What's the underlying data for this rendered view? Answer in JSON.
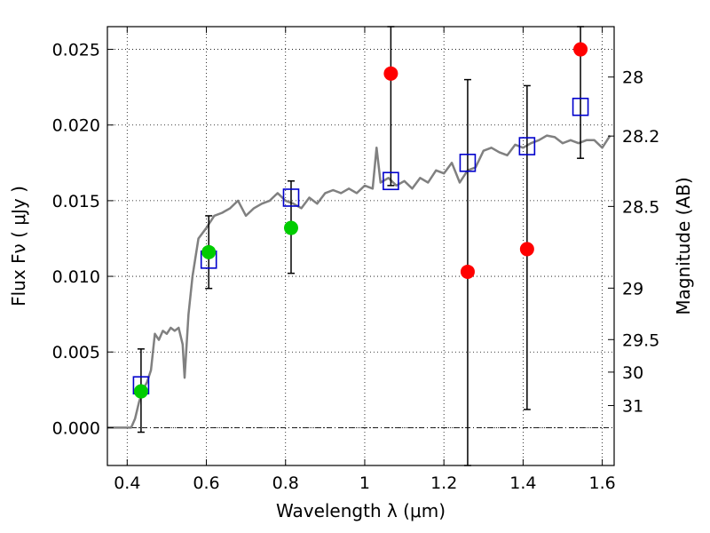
{
  "chart_data": {
    "type": "scatter",
    "title": "",
    "xlabel": "Wavelength  λ (μm)",
    "ylabel": "Flux  Fν  ( μJy )",
    "y2label": "Magnitude (AB)",
    "xlim": [
      0.35,
      1.63
    ],
    "ylim": [
      -0.0025,
      0.0265
    ],
    "grid": true,
    "x_ticks": [
      0.4,
      0.6,
      0.8,
      1.0,
      1.2,
      1.4,
      1.6
    ],
    "x_tick_labels": [
      "0.4",
      "0.6",
      "0.8",
      "1",
      "1.2",
      "1.4",
      "1.6"
    ],
    "y_ticks": [
      0.0,
      0.005,
      0.01,
      0.015,
      0.02,
      0.025
    ],
    "y_tick_labels": [
      "0.000",
      "0.005",
      "0.010",
      "0.015",
      "0.020",
      "0.025"
    ],
    "y2_ticks": [
      {
        "label": "28",
        "flux": 0.02317
      },
      {
        "label": "28.2",
        "flux": 0.01927
      },
      {
        "label": "28.5",
        "flux": 0.01462
      },
      {
        "label": "29",
        "flux": 0.00922
      },
      {
        "label": "29.5",
        "flux": 0.00582
      },
      {
        "label": "30",
        "flux": 0.00367
      },
      {
        "label": "31",
        "flux": 0.00146
      }
    ],
    "colors": {
      "model": "#808080",
      "green_points": "#00cc00",
      "red_points": "#ff0000",
      "squares": "#0000cc",
      "errorbars": "#000000",
      "zero_line": "#000000"
    },
    "series": [
      {
        "kind": "line",
        "points": [
          [
            0.35,
            0.0
          ],
          [
            0.41,
            0.0
          ],
          [
            0.42,
            0.0006
          ],
          [
            0.43,
            0.0017
          ],
          [
            0.44,
            0.0025
          ],
          [
            0.45,
            0.003
          ],
          [
            0.46,
            0.0038
          ],
          [
            0.47,
            0.0062
          ],
          [
            0.48,
            0.0058
          ],
          [
            0.49,
            0.0064
          ],
          [
            0.5,
            0.0062
          ],
          [
            0.51,
            0.0066
          ],
          [
            0.52,
            0.0064
          ],
          [
            0.53,
            0.0066
          ],
          [
            0.54,
            0.0055
          ],
          [
            0.545,
            0.0033
          ],
          [
            0.555,
            0.0075
          ],
          [
            0.565,
            0.01
          ],
          [
            0.58,
            0.0125
          ],
          [
            0.6,
            0.0132
          ],
          [
            0.62,
            0.014
          ],
          [
            0.64,
            0.0142
          ],
          [
            0.66,
            0.0145
          ],
          [
            0.68,
            0.015
          ],
          [
            0.7,
            0.014
          ],
          [
            0.72,
            0.0145
          ],
          [
            0.74,
            0.0148
          ],
          [
            0.76,
            0.015
          ],
          [
            0.78,
            0.0155
          ],
          [
            0.8,
            0.015
          ],
          [
            0.82,
            0.0148
          ],
          [
            0.84,
            0.0145
          ],
          [
            0.86,
            0.0152
          ],
          [
            0.88,
            0.0148
          ],
          [
            0.9,
            0.0155
          ],
          [
            0.92,
            0.0157
          ],
          [
            0.94,
            0.0155
          ],
          [
            0.96,
            0.0158
          ],
          [
            0.98,
            0.0155
          ],
          [
            1.0,
            0.016
          ],
          [
            1.02,
            0.0158
          ],
          [
            1.03,
            0.0185
          ],
          [
            1.04,
            0.0162
          ],
          [
            1.06,
            0.0165
          ],
          [
            1.08,
            0.016
          ],
          [
            1.1,
            0.0163
          ],
          [
            1.12,
            0.0158
          ],
          [
            1.14,
            0.0165
          ],
          [
            1.16,
            0.0162
          ],
          [
            1.18,
            0.017
          ],
          [
            1.2,
            0.0168
          ],
          [
            1.22,
            0.0175
          ],
          [
            1.24,
            0.0162
          ],
          [
            1.26,
            0.017
          ],
          [
            1.28,
            0.0172
          ],
          [
            1.3,
            0.0183
          ],
          [
            1.32,
            0.0185
          ],
          [
            1.34,
            0.0182
          ],
          [
            1.36,
            0.018
          ],
          [
            1.38,
            0.0187
          ],
          [
            1.4,
            0.0185
          ],
          [
            1.42,
            0.0188
          ],
          [
            1.44,
            0.019
          ],
          [
            1.46,
            0.0193
          ],
          [
            1.48,
            0.0192
          ],
          [
            1.5,
            0.0188
          ],
          [
            1.52,
            0.019
          ],
          [
            1.54,
            0.0188
          ],
          [
            1.56,
            0.019
          ],
          [
            1.58,
            0.019
          ],
          [
            1.6,
            0.0185
          ],
          [
            1.62,
            0.0193
          ]
        ]
      },
      {
        "kind": "points-green",
        "points": [
          [
            0.435,
            0.0024
          ],
          [
            0.606,
            0.0116
          ],
          [
            0.814,
            0.0132
          ]
        ]
      },
      {
        "kind": "points-red",
        "points": [
          [
            1.066,
            0.0234
          ],
          [
            1.26,
            0.0103
          ],
          [
            1.41,
            0.0118
          ],
          [
            1.545,
            0.025
          ]
        ]
      },
      {
        "kind": "squares",
        "points": [
          [
            0.435,
            0.0028
          ],
          [
            0.606,
            0.0111
          ],
          [
            0.814,
            0.0152
          ],
          [
            1.066,
            0.0163
          ],
          [
            1.26,
            0.0175
          ],
          [
            1.41,
            0.0186
          ],
          [
            1.545,
            0.0212
          ]
        ]
      },
      {
        "kind": "errorbars",
        "bars": [
          {
            "x": 0.435,
            "low": -0.0003,
            "high": 0.0052
          },
          {
            "x": 0.606,
            "low": 0.0092,
            "high": 0.014
          },
          {
            "x": 0.814,
            "low": 0.0102,
            "high": 0.0163
          },
          {
            "x": 1.066,
            "low": 0.016,
            "high": 0.0265
          },
          {
            "x": 1.26,
            "low": -0.0025,
            "high": 0.023
          },
          {
            "x": 1.41,
            "low": 0.0012,
            "high": 0.0226
          },
          {
            "x": 1.545,
            "low": 0.0178,
            "high": 0.0265
          }
        ]
      }
    ]
  }
}
